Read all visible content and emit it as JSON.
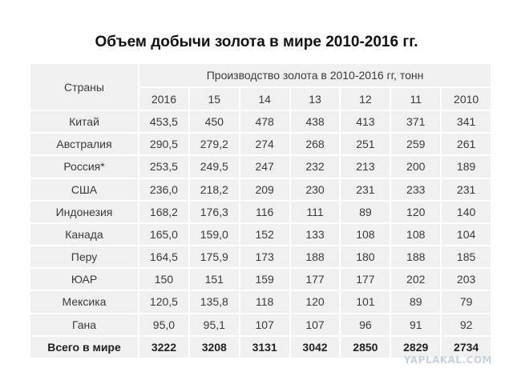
{
  "title": "Объем добычи золота в мире 2010-2016 гг.",
  "table": {
    "country_header": "Страны",
    "group_header": "Производство золота в 2010-2016 гг, тонн",
    "years": [
      "2016",
      "15",
      "14",
      "13",
      "12",
      "11",
      "2010"
    ],
    "rows": [
      {
        "country": "Китай",
        "values": [
          "453,5",
          "450",
          "478",
          "438",
          "413",
          "371",
          "341"
        ]
      },
      {
        "country": "Австралия",
        "values": [
          "290,5",
          "279,2",
          "274",
          "268",
          "251",
          "259",
          "261"
        ]
      },
      {
        "country": "Россия*",
        "values": [
          "253,5",
          "249,5",
          "247",
          "232",
          "213",
          "200",
          "189"
        ]
      },
      {
        "country": "США",
        "values": [
          "236,0",
          "218,2",
          "209",
          "230",
          "231",
          "233",
          "231"
        ]
      },
      {
        "country": "Индонезия",
        "values": [
          "168,2",
          "176,3",
          "116",
          "111",
          "89",
          "120",
          "140"
        ]
      },
      {
        "country": "Канада",
        "values": [
          "165,0",
          "159,0",
          "152",
          "133",
          "108",
          "108",
          "104"
        ]
      },
      {
        "country": "Перу",
        "values": [
          "164,5",
          "175,9",
          "173",
          "188",
          "180",
          "188",
          "185"
        ]
      },
      {
        "country": "ЮАР",
        "values": [
          "150",
          "151",
          "159",
          "177",
          "177",
          "202",
          "203"
        ]
      },
      {
        "country": "Мексика",
        "values": [
          "120,5",
          "135,8",
          "118",
          "120",
          "101",
          "89",
          "79"
        ]
      },
      {
        "country": "Гана",
        "values": [
          "95,0",
          "95,1",
          "107",
          "107",
          "96",
          "91",
          "92"
        ]
      }
    ],
    "total": {
      "label": "Всего в мире",
      "values": [
        "3222",
        "3208",
        "3131",
        "3042",
        "2850",
        "2829",
        "2734"
      ]
    }
  },
  "watermark": "YAPLAKAL.COM"
}
